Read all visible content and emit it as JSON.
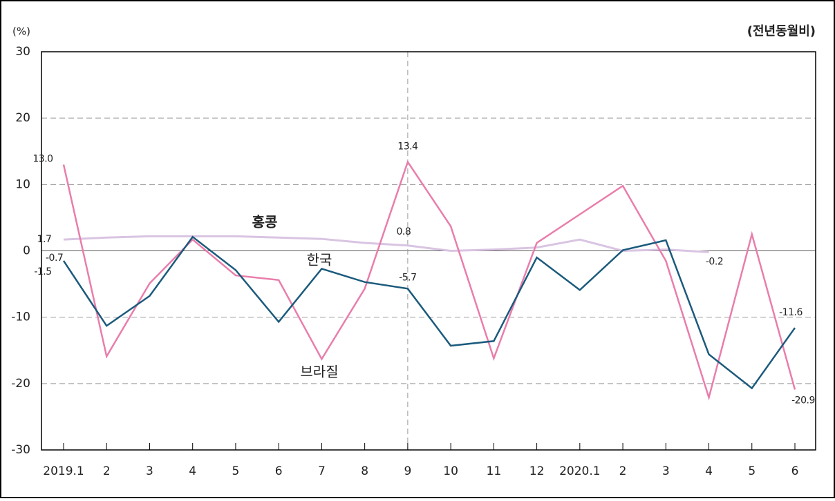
{
  "chart_data": {
    "type": "line",
    "y_unit": "(%)",
    "note": "(전년동월비)",
    "categories": [
      "2019.1",
      "2",
      "3",
      "4",
      "5",
      "6",
      "7",
      "8",
      "9",
      "10",
      "11",
      "12",
      "2020.1",
      "2",
      "3",
      "4",
      "5",
      "6"
    ],
    "series": [
      {
        "name": "홍콩",
        "color": "#d9c4e2",
        "values": [
          1.7,
          2.0,
          2.2,
          2.2,
          2.2,
          2.0,
          1.8,
          1.2,
          0.8,
          0.0,
          0.2,
          0.5,
          1.7,
          0.0,
          0.2,
          -0.2,
          null,
          null
        ],
        "value_labels": [
          "1.7",
          null,
          null,
          null,
          null,
          null,
          null,
          null,
          "0.8",
          null,
          null,
          null,
          null,
          null,
          null,
          "-0.2",
          null,
          null
        ]
      },
      {
        "name": "브라질",
        "color": "#e97dab",
        "values": [
          13.0,
          -15.9,
          -4.9,
          1.7,
          -3.7,
          -4.4,
          -16.3,
          -5.7,
          13.4,
          3.7,
          -16.2,
          1.2,
          5.5,
          9.8,
          -1.5,
          -22.1,
          2.5,
          -20.9
        ],
        "value_labels": [
          "13.0",
          null,
          null,
          null,
          null,
          null,
          null,
          null,
          "13.4",
          null,
          null,
          null,
          null,
          null,
          null,
          null,
          null,
          "-20.9"
        ]
      },
      {
        "name": "한국",
        "color": "#1b5a7c",
        "values": [
          -1.5,
          -11.3,
          -6.8,
          2.1,
          -2.9,
          -10.7,
          -2.7,
          -4.7,
          -5.7,
          -14.3,
          -13.6,
          -1.0,
          -5.9,
          0.1,
          1.6,
          -15.6,
          -20.7,
          -11.6
        ],
        "value_labels": [
          "-1.5",
          null,
          null,
          null,
          null,
          null,
          null,
          null,
          "-5.7",
          null,
          null,
          null,
          null,
          null,
          null,
          null,
          null,
          "-11.6"
        ]
      }
    ],
    "annotations": [
      "-0.7"
    ],
    "ylim": [
      -30,
      30
    ],
    "yticks": [
      30,
      20,
      10,
      0,
      -10,
      -20,
      -30
    ],
    "grid": true
  }
}
